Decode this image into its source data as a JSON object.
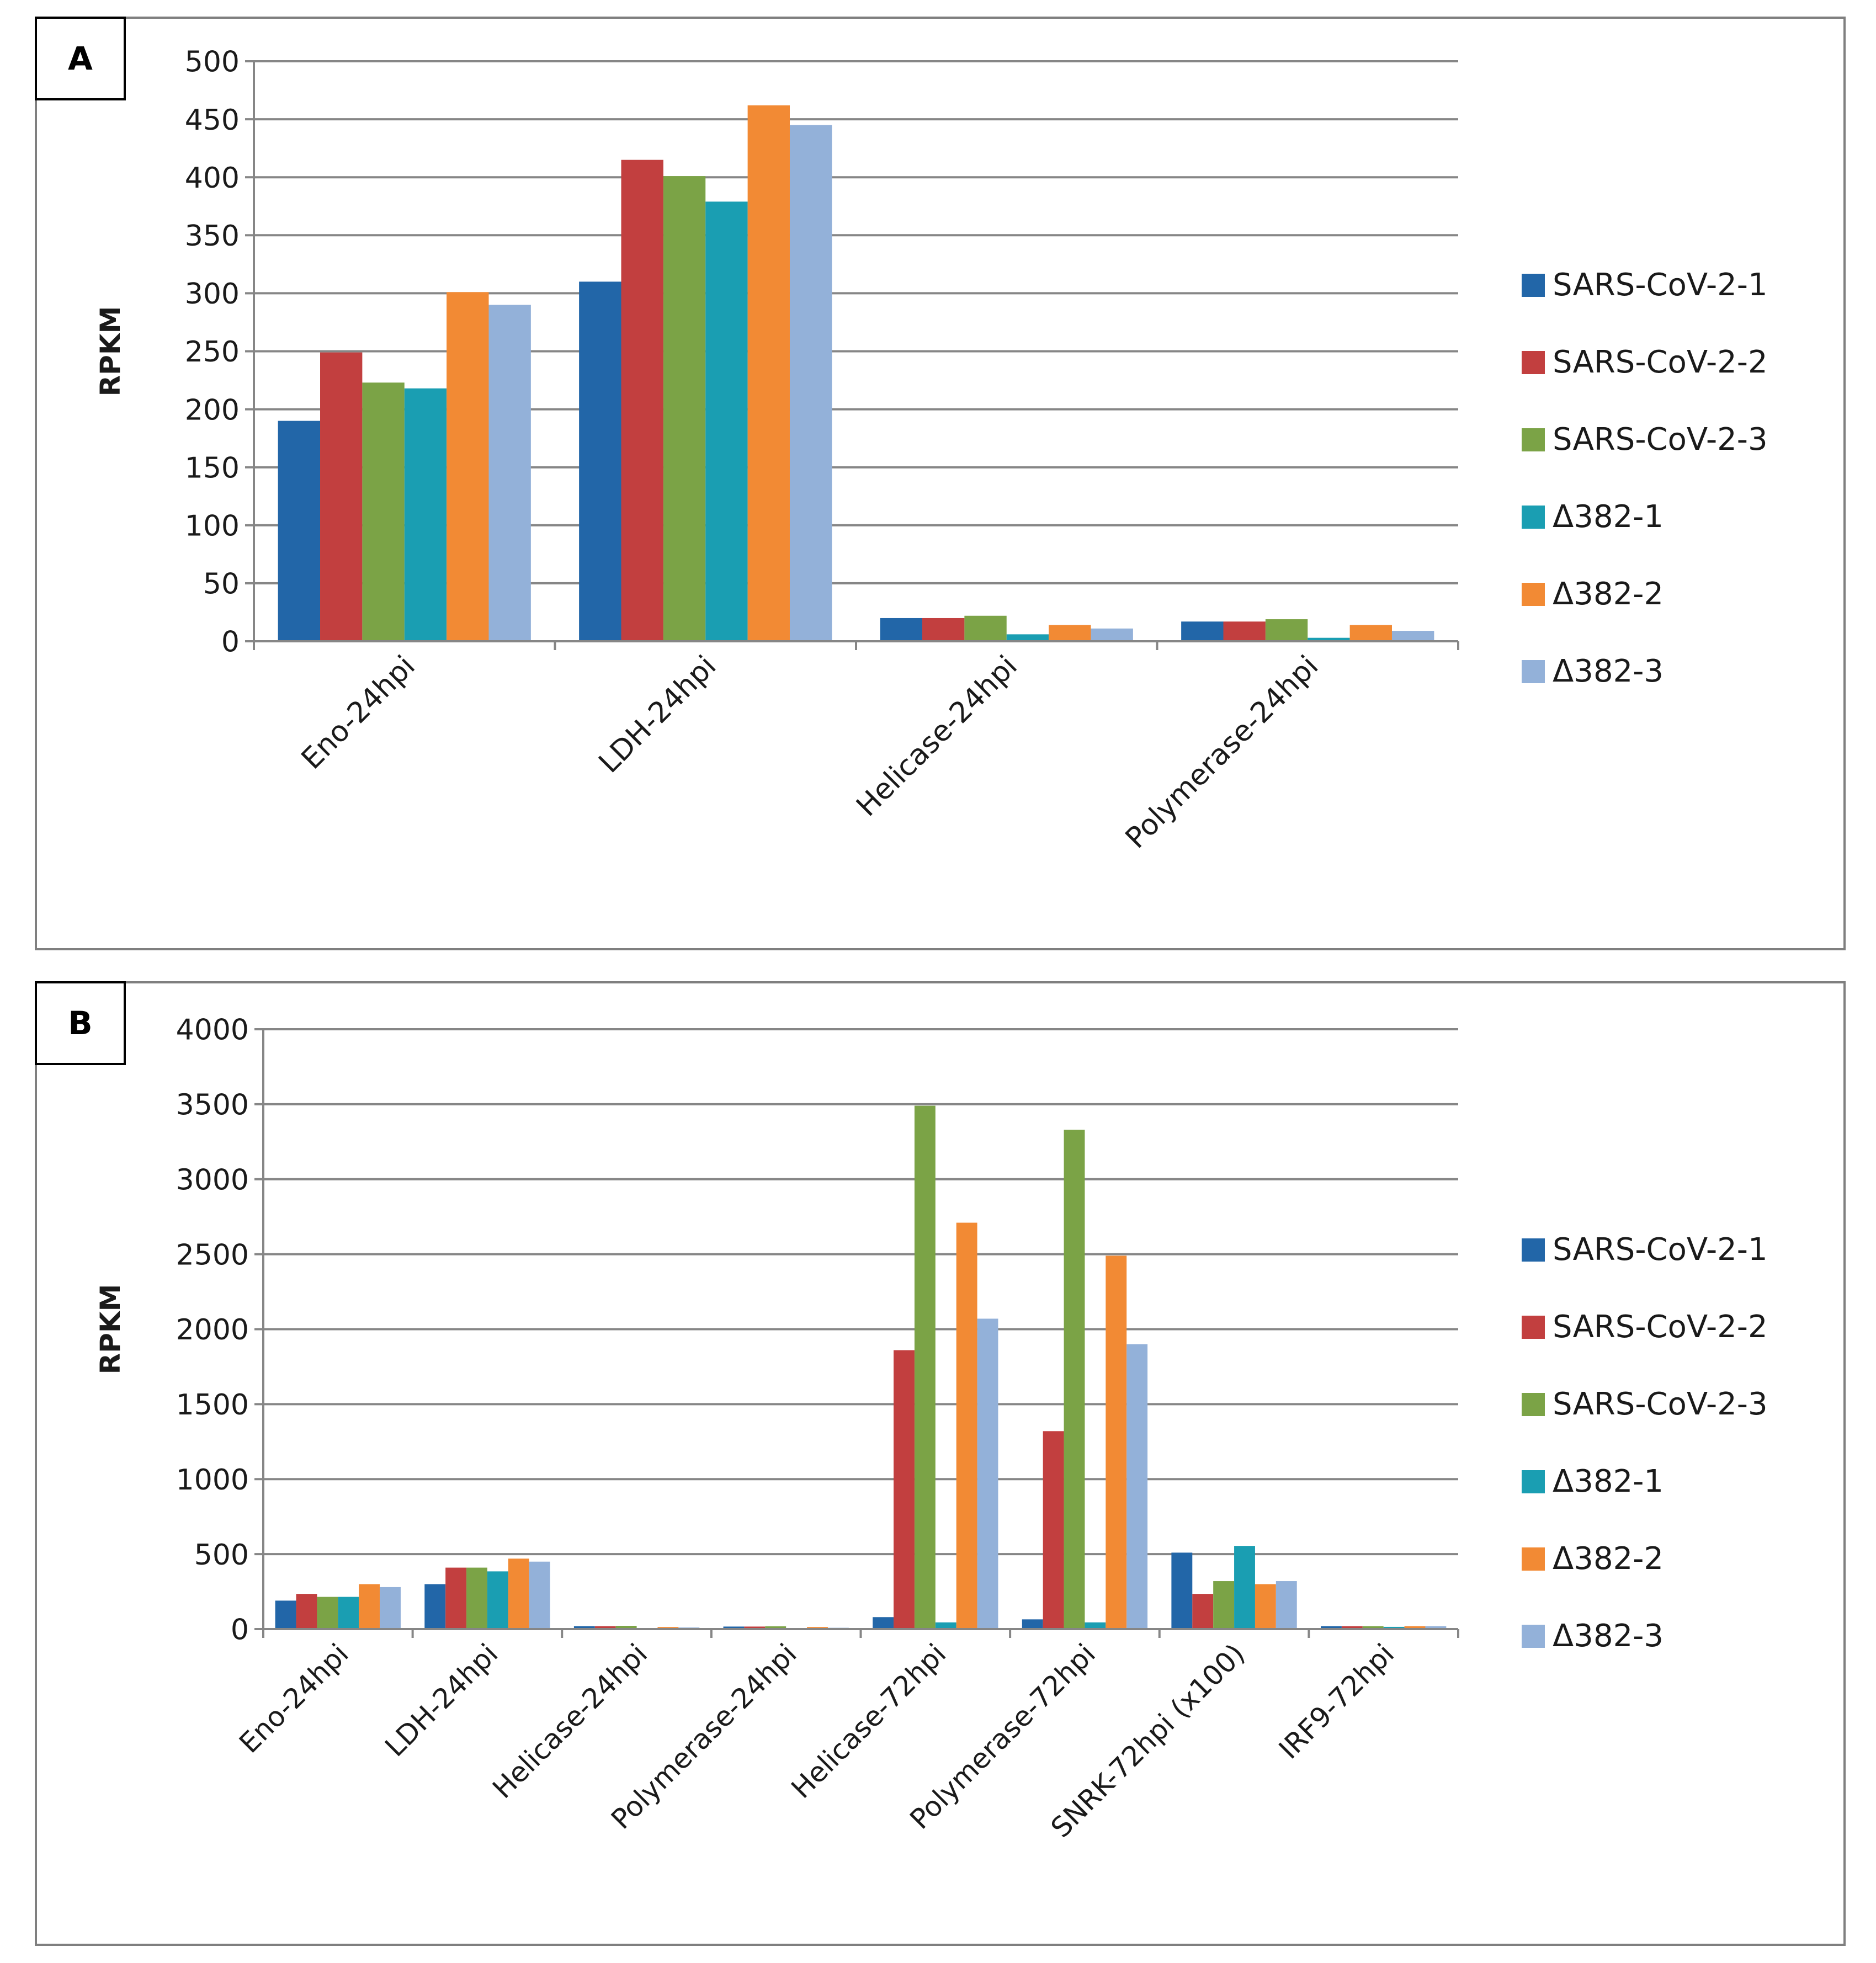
{
  "colors": {
    "SARS-CoV-2-1": "#2266a8",
    "SARS-CoV-2-2": "#c23f3f",
    "SARS-CoV-2-3": "#7ba346",
    "Δ382-1": "#1a9eb2",
    "Δ382-2": "#f28a34",
    "Δ382-3": "#93b1d9"
  },
  "chart_data": [
    {
      "panel_label": "A",
      "type": "bar",
      "ylabel": "RPKM",
      "ylim": [
        0,
        500
      ],
      "yticks": [
        "0",
        "50",
        "100",
        "150",
        "200",
        "250",
        "300",
        "350",
        "400",
        "450",
        "500"
      ],
      "ytick_values": [
        0,
        50,
        100,
        150,
        200,
        250,
        300,
        350,
        400,
        450,
        500
      ],
      "grid": true,
      "legend_position": "right",
      "categories": [
        "Eno-24hpi",
        "LDH-24hpi",
        "Helicase-24hpi",
        "Polymerase-24hpi"
      ],
      "series": [
        {
          "name": "SARS-CoV-2-1",
          "values": [
            190,
            310,
            20,
            17
          ]
        },
        {
          "name": "SARS-CoV-2-2",
          "values": [
            249,
            415,
            20,
            17
          ]
        },
        {
          "name": "SARS-CoV-2-3",
          "values": [
            223,
            401,
            22,
            19
          ]
        },
        {
          "name": "Δ382-1",
          "values": [
            218,
            379,
            6,
            3
          ]
        },
        {
          "name": "Δ382-2",
          "values": [
            301,
            462,
            14,
            14
          ]
        },
        {
          "name": "Δ382-3",
          "values": [
            290,
            445,
            11,
            9
          ]
        }
      ]
    },
    {
      "panel_label": "B",
      "type": "bar",
      "ylabel": "RPKM",
      "ylim": [
        0,
        4000
      ],
      "yticks": [
        "0",
        "500",
        "1000",
        "1500",
        "2000",
        "2500",
        "3000",
        "3500",
        "4000"
      ],
      "ytick_values": [
        0,
        500,
        1000,
        1500,
        2000,
        2500,
        3000,
        3500,
        4000
      ],
      "grid": true,
      "legend_position": "right",
      "categories": [
        "Eno-24hpi",
        "LDH-24hpi",
        "Helicase-24hpi",
        "Polymerase-24hpi",
        "Helicase-72hpi",
        "Polymerase-72hpi",
        "SNRK-72hpi (x100)",
        "IRF9-72hpi"
      ],
      "series": [
        {
          "name": "SARS-CoV-2-1",
          "values": [
            190,
            300,
            20,
            17,
            80,
            65,
            510,
            20
          ]
        },
        {
          "name": "SARS-CoV-2-2",
          "values": [
            235,
            410,
            20,
            17,
            1860,
            1320,
            235,
            20
          ]
        },
        {
          "name": "SARS-CoV-2-3",
          "values": [
            215,
            410,
            22,
            19,
            3490,
            3330,
            320,
            20
          ]
        },
        {
          "name": "Δ382-1",
          "values": [
            215,
            385,
            6,
            3,
            45,
            45,
            555,
            15
          ]
        },
        {
          "name": "Δ382-2",
          "values": [
            300,
            470,
            14,
            14,
            2710,
            2490,
            300,
            20
          ]
        },
        {
          "name": "Δ382-3",
          "values": [
            280,
            450,
            11,
            9,
            2070,
            1900,
            320,
            20
          ]
        }
      ]
    }
  ]
}
